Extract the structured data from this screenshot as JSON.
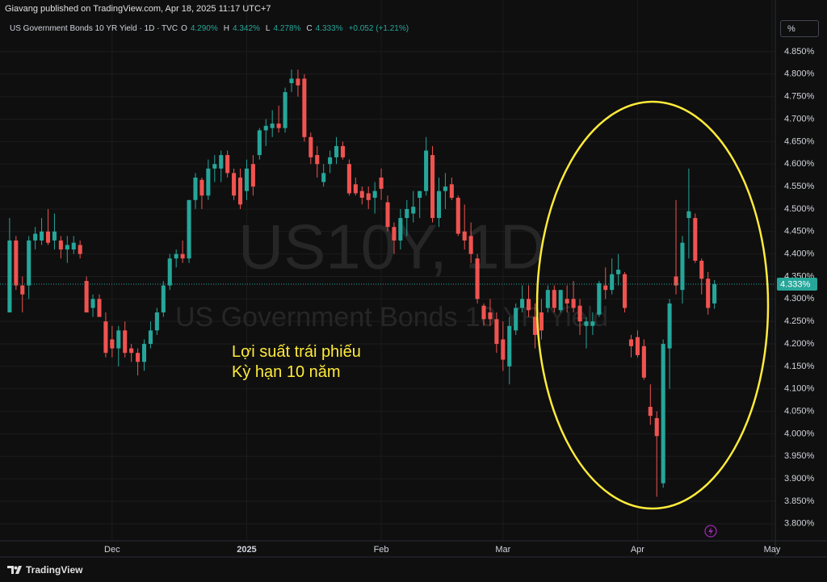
{
  "header": {
    "published": "Giavang published on TradingView.com, Apr 18, 2025 11:17 UTC+7",
    "scale_button": "%",
    "brand": "TradingView"
  },
  "chart_data": {
    "type": "candlestick",
    "title": "US Government Bonds 10 YR Yield · 1D · TVC",
    "legend": [
      {
        "label": "O",
        "value": "4.290%"
      },
      {
        "label": "H",
        "value": "4.342%"
      },
      {
        "label": "L",
        "value": "4.278%"
      },
      {
        "label": "C",
        "value": "4.333%"
      }
    ],
    "change": "+0.052 (+1.21%)",
    "watermark": [
      "US10Y, 1D",
      "US Government Bonds 10 YR Yield"
    ],
    "annotation": [
      "Lợi suất trái phiếu",
      "Kỳ hạn 10 năm"
    ],
    "up_color": "#26a69a",
    "down_color": "#ef5350",
    "open": [
      4.27,
      4.43,
      4.33,
      4.33,
      4.43,
      4.43,
      4.45,
      4.43,
      4.43,
      4.41,
      4.41,
      4.42,
      4.34,
      4.28,
      4.3,
      4.25,
      4.21,
      4.19,
      4.23,
      4.19,
      4.18,
      4.16,
      4.2,
      4.23,
      4.27,
      4.33,
      4.39,
      4.4,
      4.39,
      4.52,
      4.565,
      4.53,
      4.59,
      4.59,
      4.62,
      4.58,
      4.57,
      4.54,
      4.6,
      4.62,
      4.675,
      4.68,
      4.69,
      4.68,
      4.78,
      4.79,
      4.79,
      4.66,
      4.62,
      4.56,
      4.6,
      4.615,
      4.64,
      4.6,
      4.555,
      4.54,
      4.535,
      4.525,
      4.57,
      4.515,
      4.46,
      4.43,
      4.48,
      4.49,
      4.525,
      4.54,
      4.62,
      4.48,
      4.54,
      4.555,
      4.525,
      4.45,
      4.44,
      4.39,
      4.285,
      4.27,
      4.255,
      4.21,
      4.15,
      4.23,
      4.28,
      4.3,
      4.26,
      4.27,
      4.28,
      4.32,
      4.275,
      4.3,
      4.3,
      4.285,
      4.24,
      4.24,
      4.265,
      4.33,
      4.32,
      4.355,
      4.355,
      4.21,
      4.215,
      4.195,
      4.06,
      4.035,
      3.89,
      4.19,
      4.35,
      4.32,
      4.48,
      4.48,
      4.385,
      4.345,
      4.29
    ],
    "high": [
      4.48,
      4.44,
      4.35,
      4.44,
      4.46,
      4.48,
      4.5,
      4.49,
      4.44,
      4.44,
      4.44,
      4.43,
      4.35,
      4.31,
      4.31,
      4.27,
      4.24,
      4.24,
      4.25,
      4.2,
      4.19,
      4.21,
      4.25,
      4.28,
      4.34,
      4.4,
      4.41,
      4.43,
      4.52,
      4.58,
      4.57,
      4.61,
      4.62,
      4.63,
      4.63,
      4.59,
      4.59,
      4.61,
      4.62,
      4.68,
      4.7,
      4.72,
      4.73,
      4.77,
      4.81,
      4.81,
      4.8,
      4.67,
      4.64,
      4.6,
      4.63,
      4.66,
      4.65,
      4.61,
      4.57,
      4.55,
      4.55,
      4.56,
      4.59,
      4.53,
      4.47,
      4.5,
      4.52,
      4.54,
      4.54,
      4.66,
      4.64,
      4.57,
      4.58,
      4.57,
      4.53,
      4.51,
      4.47,
      4.4,
      4.29,
      4.3,
      4.27,
      4.25,
      4.26,
      4.29,
      4.33,
      4.33,
      4.29,
      4.3,
      4.33,
      4.33,
      4.32,
      4.33,
      4.34,
      4.3,
      4.26,
      4.27,
      4.34,
      4.37,
      4.39,
      4.4,
      4.36,
      4.22,
      4.23,
      4.21,
      4.11,
      4.05,
      4.21,
      4.3,
      4.52,
      4.44,
      4.59,
      4.49,
      4.39,
      4.36,
      4.342
    ],
    "low": [
      4.27,
      4.32,
      4.27,
      4.3,
      4.41,
      4.42,
      4.42,
      4.41,
      4.39,
      4.38,
      4.4,
      4.39,
      4.27,
      4.26,
      4.26,
      4.17,
      4.17,
      4.15,
      4.17,
      4.16,
      4.13,
      4.14,
      4.19,
      4.22,
      4.26,
      4.32,
      4.37,
      4.38,
      4.38,
      4.5,
      4.5,
      4.52,
      4.56,
      4.56,
      4.57,
      4.52,
      4.5,
      4.52,
      4.53,
      4.61,
      4.64,
      4.66,
      4.67,
      4.67,
      4.76,
      4.75,
      4.65,
      4.6,
      4.57,
      4.55,
      4.58,
      4.6,
      4.61,
      4.53,
      4.53,
      4.51,
      4.5,
      4.49,
      4.52,
      4.45,
      4.4,
      4.41,
      4.44,
      4.47,
      4.48,
      4.53,
      4.47,
      4.46,
      4.5,
      4.52,
      4.44,
      4.41,
      4.38,
      4.29,
      4.24,
      4.24,
      4.18,
      4.14,
      4.11,
      4.22,
      4.27,
      4.26,
      4.19,
      4.21,
      4.27,
      4.27,
      4.27,
      4.27,
      4.27,
      4.22,
      4.19,
      4.22,
      4.26,
      4.3,
      4.31,
      4.33,
      4.27,
      4.17,
      4.17,
      4.12,
      4.02,
      3.86,
      3.88,
      4.1,
      4.31,
      4.29,
      4.39,
      4.38,
      4.31,
      4.265,
      4.278
    ],
    "close": [
      4.43,
      4.33,
      4.31,
      4.43,
      4.445,
      4.45,
      4.425,
      4.45,
      4.41,
      4.42,
      4.425,
      4.4,
      4.27,
      4.3,
      4.26,
      4.18,
      4.19,
      4.23,
      4.18,
      4.18,
      4.16,
      4.2,
      4.23,
      4.27,
      4.33,
      4.39,
      4.4,
      4.39,
      4.52,
      4.57,
      4.53,
      4.59,
      4.6,
      4.62,
      4.58,
      4.53,
      4.51,
      4.59,
      4.55,
      4.675,
      4.685,
      4.69,
      4.68,
      4.76,
      4.79,
      4.775,
      4.66,
      4.615,
      4.6,
      4.58,
      4.615,
      4.64,
      4.615,
      4.535,
      4.535,
      4.525,
      4.52,
      4.54,
      4.545,
      4.46,
      4.43,
      4.48,
      4.5,
      4.505,
      4.54,
      4.63,
      4.48,
      4.54,
      4.55,
      4.525,
      4.445,
      4.43,
      4.4,
      4.3,
      4.255,
      4.255,
      4.2,
      4.165,
      4.24,
      4.28,
      4.3,
      4.275,
      4.22,
      4.23,
      4.32,
      4.28,
      4.32,
      4.29,
      4.28,
      4.25,
      4.25,
      4.25,
      4.335,
      4.32,
      4.355,
      4.365,
      4.28,
      4.195,
      4.175,
      4.125,
      4.04,
      3.995,
      4.2,
      4.29,
      4.33,
      4.425,
      4.495,
      4.385,
      4.345,
      4.28,
      4.333
    ],
    "last_price": {
      "value": 4.333,
      "label": "4.333%"
    },
    "xlim": [
      -1.5,
      119.5
    ],
    "xticks": [
      {
        "value": 16,
        "label": "Dec"
      },
      {
        "value": 37,
        "label": "2025"
      },
      {
        "value": 58,
        "label": "Feb"
      },
      {
        "value": 77,
        "label": "Mar"
      },
      {
        "value": 98,
        "label": "Apr"
      },
      {
        "value": 119,
        "label": "May"
      }
    ],
    "ylim": [
      3.762,
      4.92
    ],
    "yticks": [
      {
        "value": 3.8,
        "label": "3.800%"
      },
      {
        "value": 3.85,
        "label": "3.850%"
      },
      {
        "value": 3.9,
        "label": "3.900%"
      },
      {
        "value": 3.95,
        "label": "3.950%"
      },
      {
        "value": 4.0,
        "label": "4.000%"
      },
      {
        "value": 4.05,
        "label": "4.050%"
      },
      {
        "value": 4.1,
        "label": "4.100%"
      },
      {
        "value": 4.15,
        "label": "4.150%"
      },
      {
        "value": 4.2,
        "label": "4.200%"
      },
      {
        "value": 4.25,
        "label": "4.250%"
      },
      {
        "value": 4.3,
        "label": "4.300%"
      },
      {
        "value": 4.35,
        "label": "4.350%"
      },
      {
        "value": 4.4,
        "label": "4.400%"
      },
      {
        "value": 4.45,
        "label": "4.450%"
      },
      {
        "value": 4.5,
        "label": "4.500%"
      },
      {
        "value": 4.55,
        "label": "4.550%"
      },
      {
        "value": 4.6,
        "label": "4.600%"
      },
      {
        "value": 4.65,
        "label": "4.650%"
      },
      {
        "value": 4.7,
        "label": "4.700%"
      },
      {
        "value": 4.75,
        "label": "4.750%"
      },
      {
        "value": 4.8,
        "label": "4.800%"
      },
      {
        "value": 4.85,
        "label": "4.850%"
      }
    ],
    "grid": true
  }
}
